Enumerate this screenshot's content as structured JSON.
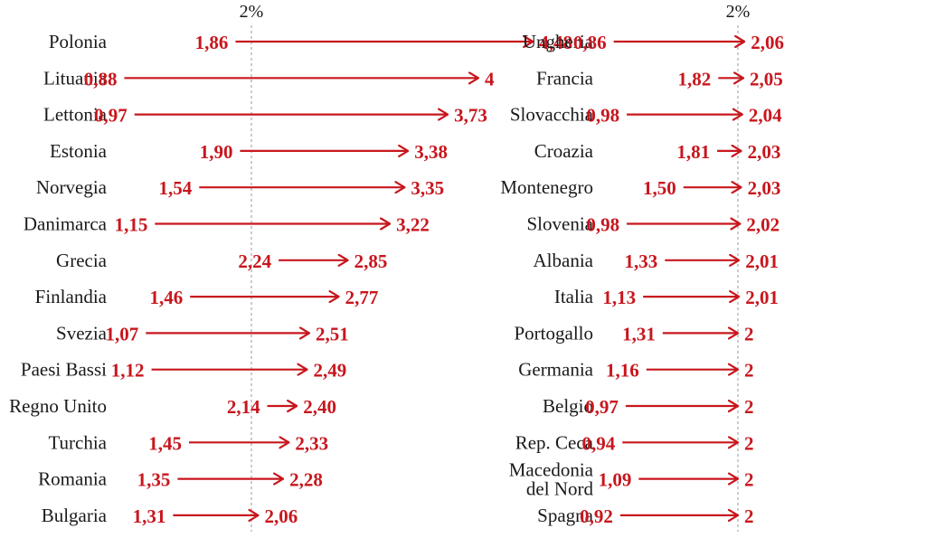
{
  "chart_data": [
    {
      "type": "arrow",
      "reference_line": {
        "value": 2,
        "label": "2%"
      },
      "color": "#c8161d",
      "rows": [
        {
          "country": "Polonia",
          "from": 1.86,
          "to": 4.48,
          "from_label": "1,86",
          "to_label": "4,48"
        },
        {
          "country": "Lituania",
          "from": 0.88,
          "to": 4,
          "from_label": "0,88",
          "to_label": "4"
        },
        {
          "country": "Lettonia",
          "from": 0.97,
          "to": 3.73,
          "from_label": "0,97",
          "to_label": "3,73"
        },
        {
          "country": "Estonia",
          "from": 1.9,
          "to": 3.38,
          "from_label": "1,90",
          "to_label": "3,38"
        },
        {
          "country": "Norvegia",
          "from": 1.54,
          "to": 3.35,
          "from_label": "1,54",
          "to_label": "3,35"
        },
        {
          "country": "Danimarca",
          "from": 1.15,
          "to": 3.22,
          "from_label": "1,15",
          "to_label": "3,22"
        },
        {
          "country": "Grecia",
          "from": 2.24,
          "to": 2.85,
          "from_label": "2,24",
          "to_label": "2,85"
        },
        {
          "country": "Finlandia",
          "from": 1.46,
          "to": 2.77,
          "from_label": "1,46",
          "to_label": "2,77"
        },
        {
          "country": "Svezia",
          "from": 1.07,
          "to": 2.51,
          "from_label": "1,07",
          "to_label": "2,51"
        },
        {
          "country": "Paesi Bassi",
          "from": 1.12,
          "to": 2.49,
          "from_label": "1,12",
          "to_label": "2,49"
        },
        {
          "country": "Regno Unito",
          "from": 2.14,
          "to": 2.4,
          "from_label": "2,14",
          "to_label": "2,40"
        },
        {
          "country": "Turchia",
          "from": 1.45,
          "to": 2.33,
          "from_label": "1,45",
          "to_label": "2,33"
        },
        {
          "country": "Romania",
          "from": 1.35,
          "to": 2.28,
          "from_label": "1,35",
          "to_label": "2,28"
        },
        {
          "country": "Bulgaria",
          "from": 1.31,
          "to": 2.06,
          "from_label": "1,31",
          "to_label": "2,06"
        }
      ]
    },
    {
      "type": "arrow",
      "reference_line": {
        "value": 2,
        "label": "2%"
      },
      "color": "#c8161d",
      "rows": [
        {
          "country": "Ungheria",
          "from": 0.86,
          "to": 2.06,
          "from_label": "0,86",
          "to_label": "2,06"
        },
        {
          "country": "Francia",
          "from": 1.82,
          "to": 2.05,
          "from_label": "1,82",
          "to_label": "2,05"
        },
        {
          "country": "Slovacchia",
          "from": 0.98,
          "to": 2.04,
          "from_label": "0,98",
          "to_label": "2,04"
        },
        {
          "country": "Croazia",
          "from": 1.81,
          "to": 2.03,
          "from_label": "1,81",
          "to_label": "2,03"
        },
        {
          "country": "Montenegro",
          "from": 1.5,
          "to": 2.03,
          "from_label": "1,50",
          "to_label": "2,03"
        },
        {
          "country": "Slovenia",
          "from": 0.98,
          "to": 2.02,
          "from_label": "0,98",
          "to_label": "2,02"
        },
        {
          "country": "Albania",
          "from": 1.33,
          "to": 2.01,
          "from_label": "1,33",
          "to_label": "2,01"
        },
        {
          "country": "Italia",
          "from": 1.13,
          "to": 2.01,
          "from_label": "1,13",
          "to_label": "2,01"
        },
        {
          "country": "Portogallo",
          "from": 1.31,
          "to": 2,
          "from_label": "1,31",
          "to_label": "2"
        },
        {
          "country": "Germania",
          "from": 1.16,
          "to": 2,
          "from_label": "1,16",
          "to_label": "2"
        },
        {
          "country": "Belgio",
          "from": 0.97,
          "to": 2,
          "from_label": "0,97",
          "to_label": "2"
        },
        {
          "country": "Rep. Ceca",
          "from": 0.94,
          "to": 2,
          "from_label": "0,94",
          "to_label": "2"
        },
        {
          "country": "Macedonia del Nord",
          "country_lines": [
            "Macedonia",
            "del Nord"
          ],
          "from": 1.09,
          "to": 2,
          "from_label": "1,09",
          "to_label": "2"
        },
        {
          "country": "Spagna",
          "from": 0.92,
          "to": 2,
          "from_label": "0,92",
          "to_label": "2"
        }
      ]
    }
  ]
}
